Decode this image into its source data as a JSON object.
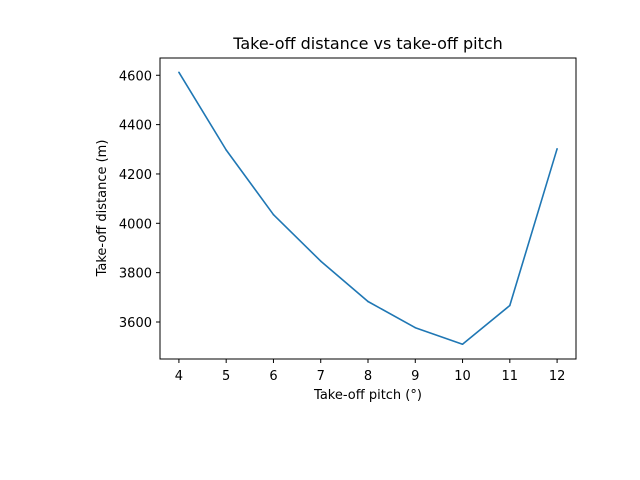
{
  "chart_data": {
    "type": "line",
    "title": "Take-off distance vs take-off pitch",
    "xlabel": "Take-off pitch (°)",
    "ylabel": "Take-off distance (m)",
    "xlim": [
      3.6,
      12.4
    ],
    "ylim": [
      3450,
      4670
    ],
    "xticks": [
      4,
      5,
      6,
      7,
      8,
      9,
      10,
      11,
      12
    ],
    "yticks": [
      3600,
      3800,
      4000,
      4200,
      4400,
      4600
    ],
    "grid": false,
    "series": [
      {
        "color": "#1f77b4",
        "x": [
          4,
          5,
          6,
          7,
          8,
          9,
          10,
          11,
          12
        ],
        "y": [
          4612,
          4297,
          4035,
          3847,
          3683,
          3577,
          3510,
          3667,
          4302
        ]
      }
    ]
  }
}
